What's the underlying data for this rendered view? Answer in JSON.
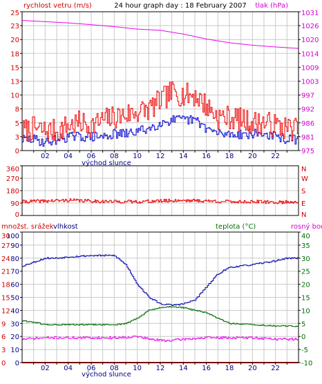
{
  "colors": {
    "speed": "#ee0000",
    "pressure": "#ee00ee",
    "gust": "#0000cc",
    "direction": "#ee0000",
    "humidity": "#0000aa",
    "temperature": "#006600",
    "dewpoint": "#ee00ee",
    "precip": "#ee0000",
    "grid": "#c8c8c8",
    "frame": "#000000"
  },
  "x_tick_labels": [
    "02",
    "04",
    "06",
    "08",
    "10",
    "12",
    "14",
    "16",
    "18",
    "20",
    "22"
  ],
  "sunrise_label": "východ slunce",
  "chart_data": [
    {
      "type": "line",
      "title": "24 hour graph day : 18 February 2007",
      "ylabel": "rychlost vetru (m/s)",
      "y2label": "tlak (hPa)",
      "xlim": [
        0,
        24
      ],
      "ylim": [
        0,
        25
      ],
      "y2lim": [
        975,
        1031
      ],
      "left_ticks": [
        "0",
        "3",
        "5",
        "8",
        "10",
        "13",
        "15",
        "18",
        "20",
        "23",
        "25"
      ],
      "right_ticks": [
        "975",
        "981",
        "986",
        "992",
        "997",
        "1003",
        "1009",
        "1014",
        "1020",
        "1026",
        "1031"
      ],
      "series": [
        {
          "key": "speed",
          "x": [
            0,
            1,
            2,
            3,
            4,
            5,
            6,
            7,
            8,
            9,
            10,
            11,
            12,
            13,
            14,
            15,
            16,
            17,
            18,
            19,
            20,
            21,
            22,
            23,
            24
          ],
          "values": [
            3.5,
            4,
            3.5,
            3.5,
            4.5,
            5,
            4.5,
            5.5,
            6,
            6.5,
            7,
            7.5,
            9,
            10.5,
            10,
            10,
            8,
            6,
            6,
            5.5,
            5,
            5,
            4.5,
            4,
            4
          ]
        },
        {
          "key": "gust",
          "x": [
            0,
            1,
            2,
            3,
            4,
            5,
            6,
            7,
            8,
            9,
            10,
            11,
            12,
            13,
            14,
            15,
            16,
            17,
            18,
            19,
            20,
            21,
            22,
            23,
            24
          ],
          "values": [
            2,
            2,
            1.5,
            2,
            2.5,
            2.5,
            2.5,
            2.5,
            3,
            3,
            3.5,
            4,
            5,
            5.5,
            5.5,
            5.5,
            4,
            3,
            3,
            3,
            3,
            3,
            2.5,
            2,
            2
          ]
        },
        {
          "key": "pressure",
          "x": [
            0,
            2,
            4,
            6,
            8,
            10,
            12,
            14,
            16,
            18,
            20,
            22,
            24
          ],
          "values": [
            1027.5,
            1027,
            1026.5,
            1025.8,
            1025,
            1024,
            1023.5,
            1022,
            1020,
            1018.5,
            1017.5,
            1016.8,
            1016.2
          ]
        }
      ]
    },
    {
      "type": "line",
      "left_ticks": [
        "0",
        "90",
        "180",
        "270",
        "360"
      ],
      "compass_labels": [
        "N",
        "W",
        "S",
        "E",
        "N"
      ],
      "ylim": [
        0,
        360
      ],
      "xlim": [
        0,
        24
      ],
      "series": [
        {
          "key": "direction",
          "x": [
            0,
            2,
            4,
            6,
            8,
            10,
            12,
            14,
            16,
            18,
            20,
            22,
            24
          ],
          "values": [
            100,
            105,
            110,
            105,
            100,
            100,
            105,
            110,
            105,
            100,
            100,
            95,
            100
          ]
        }
      ]
    },
    {
      "type": "line",
      "ylabel": "množst. srážek",
      "y1label": "vlhkost",
      "y2label": "teplota (°C)",
      "y3label": "rosný bod",
      "xlim": [
        0,
        24
      ],
      "ylim": [
        0,
        100
      ],
      "y2lim": [
        -10,
        40
      ],
      "precip_ticks": [
        "0",
        "3",
        "6",
        "9",
        "12",
        "15",
        "18",
        "21",
        "24",
        "27",
        "30"
      ],
      "humidity_ticks": [
        "0",
        "10",
        "20",
        "30",
        "40",
        "50",
        "60",
        "70",
        "80",
        "90",
        "100"
      ],
      "temp_ticks": [
        "-10",
        "-5",
        "0",
        "5",
        "10",
        "15",
        "20",
        "25",
        "30",
        "35",
        "40"
      ],
      "series": [
        {
          "key": "humidity",
          "x": [
            0,
            1,
            2,
            3,
            4,
            6,
            8,
            9,
            10,
            11,
            12,
            13,
            14,
            15,
            16,
            17,
            18,
            20,
            22,
            23,
            24
          ],
          "values": [
            74,
            77,
            80,
            80,
            81,
            82,
            82,
            75,
            60,
            50,
            45,
            44,
            45,
            48,
            58,
            68,
            73,
            75,
            78,
            80,
            80
          ]
        },
        {
          "key": "temperature",
          "x": [
            0,
            1,
            2,
            4,
            6,
            8,
            9,
            10,
            11,
            12,
            13,
            14,
            15,
            16,
            17,
            18,
            20,
            22,
            24
          ],
          "values": [
            6,
            5.5,
            4.5,
            4.5,
            4.5,
            4.5,
            5,
            7,
            10,
            11,
            11.5,
            11,
            10,
            9,
            7,
            5,
            4.5,
            4,
            4
          ]
        },
        {
          "key": "dewpoint",
          "x": [
            0,
            2,
            4,
            6,
            8,
            10,
            11,
            12,
            13,
            14,
            16,
            18,
            20,
            22,
            24
          ],
          "values": [
            -1,
            -0.5,
            -0.5,
            -0.5,
            -0.5,
            0,
            -1,
            -1.5,
            -1.5,
            -1,
            -0.5,
            -0.5,
            -0.5,
            -1,
            -1
          ]
        },
        {
          "key": "precip",
          "x": [
            0,
            24
          ],
          "values": [
            0,
            0
          ]
        }
      ]
    }
  ]
}
